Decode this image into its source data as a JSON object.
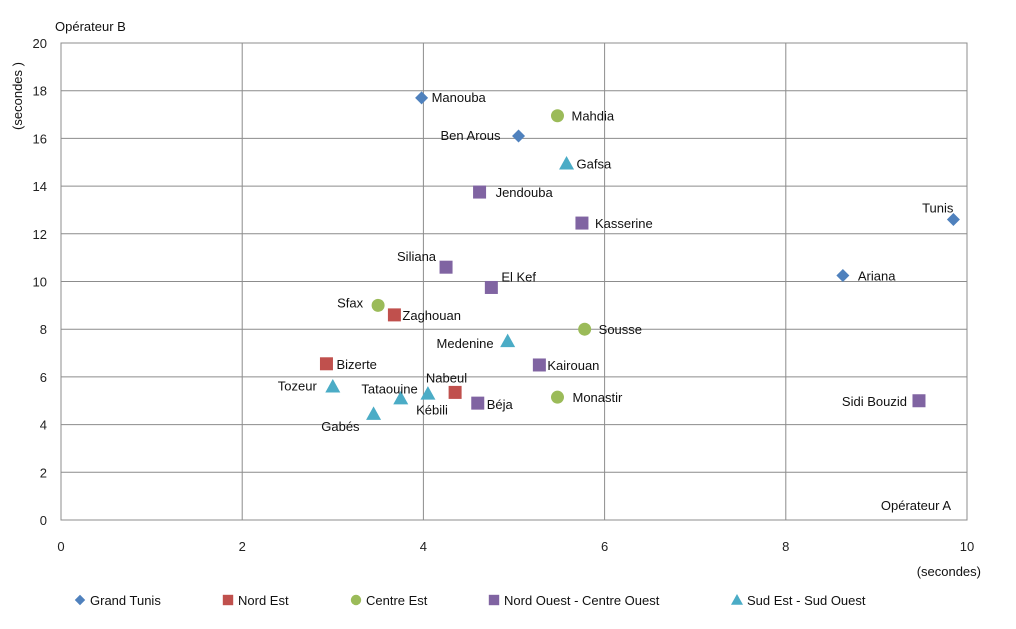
{
  "chart_data": {
    "type": "scatter",
    "title": "",
    "xlabel_top": "Opérateur A",
    "xlabel_unit": "(secondes)",
    "ylabel_top": "Opérateur B",
    "ylabel_unit": "(secondes )",
    "xlim": [
      0,
      10
    ],
    "ylim": [
      0,
      20
    ],
    "xticks": [
      0,
      2,
      4,
      6,
      8,
      10
    ],
    "yticks": [
      0,
      2,
      4,
      6,
      8,
      10,
      12,
      14,
      16,
      18,
      20
    ],
    "grid": true,
    "legend_position": "bottom",
    "series": [
      {
        "name": "Grand Tunis",
        "marker": "diamond",
        "color": "#4F81BD",
        "points": [
          {
            "label": "Manouba",
            "x": 3.98,
            "y": 17.7
          },
          {
            "label": "Ben Arous",
            "x": 5.05,
            "y": 16.1
          },
          {
            "label": "Tunis",
            "x": 9.85,
            "y": 12.6
          },
          {
            "label": "Ariana",
            "x": 8.63,
            "y": 10.25
          }
        ]
      },
      {
        "name": "Nord Est",
        "marker": "square",
        "color": "#C0504D",
        "points": [
          {
            "label": "Zaghouan",
            "x": 3.68,
            "y": 8.6
          },
          {
            "label": "Bizerte",
            "x": 2.93,
            "y": 6.55
          },
          {
            "label": "Nabeul",
            "x": 4.35,
            "y": 5.35
          }
        ]
      },
      {
        "name": "Centre Est",
        "marker": "circle",
        "color": "#9BBB59",
        "points": [
          {
            "label": "Mahdia",
            "x": 5.48,
            "y": 16.95
          },
          {
            "label": "Sfax",
            "x": 3.5,
            "y": 9.0
          },
          {
            "label": "Sousse",
            "x": 5.78,
            "y": 8.0
          },
          {
            "label": "Monastir",
            "x": 5.48,
            "y": 5.15
          }
        ]
      },
      {
        "name": "Nord Ouest - Centre Ouest",
        "marker": "square",
        "color": "#8064A2",
        "points": [
          {
            "label": "Jendouba",
            "x": 4.62,
            "y": 13.75
          },
          {
            "label": "Kasserine",
            "x": 5.75,
            "y": 12.45
          },
          {
            "label": "Siliana",
            "x": 4.25,
            "y": 10.6
          },
          {
            "label": "El Kef",
            "x": 4.75,
            "y": 9.75
          },
          {
            "label": "Kairouan",
            "x": 5.28,
            "y": 6.5
          },
          {
            "label": "Béja",
            "x": 4.6,
            "y": 4.9
          },
          {
            "label": "Sidi Bouzid",
            "x": 9.47,
            "y": 5.0
          }
        ]
      },
      {
        "name": "Sud Est - Sud Ouest",
        "marker": "triangle",
        "color": "#4BACC6",
        "points": [
          {
            "label": "Gafsa",
            "x": 5.58,
            "y": 14.95
          },
          {
            "label": "Medenine",
            "x": 4.93,
            "y": 7.5
          },
          {
            "label": "Tozeur",
            "x": 3.0,
            "y": 5.6
          },
          {
            "label": "Tataouine",
            "x": 3.75,
            "y": 5.1
          },
          {
            "label": "Kébili",
            "x": 4.05,
            "y": 5.3
          },
          {
            "label": "Gabés",
            "x": 3.45,
            "y": 4.45
          }
        ]
      }
    ]
  }
}
